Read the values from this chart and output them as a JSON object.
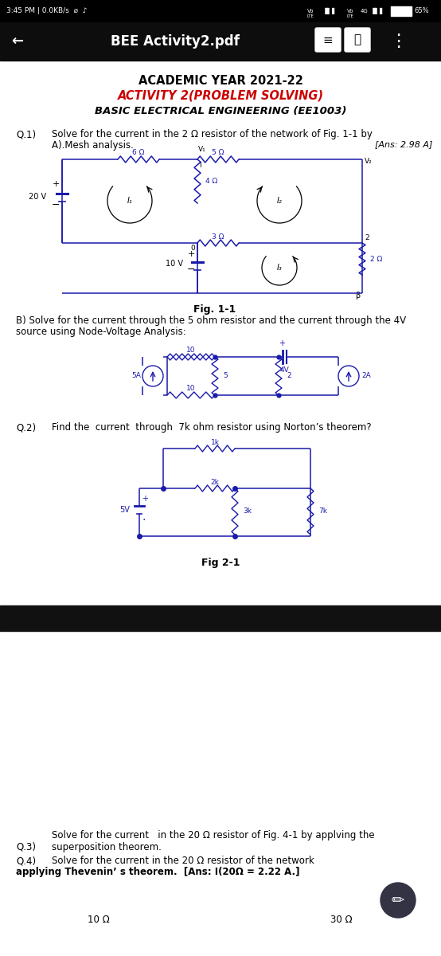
{
  "bg_color": "#000000",
  "content_bg": "#ffffff",
  "circuit_color": "#1a1aaa",
  "black": "#000000",
  "white": "#ffffff",
  "red": "#cc0000",
  "gray_bar": "#1a1a1a",
  "status_text": "3:45 PM | 0.0KB/s",
  "battery_pct": "65%",
  "title_bar_text": "BEE Activity2.pdf",
  "heading1": "ACADEMIC YEAR 2021-22",
  "heading2": "ACTIVITY 2(PROBLEM SOLVING)",
  "heading3": "BASIC ELECTRICAL ENGINEERING (EE1003)",
  "q1_line1": "Solve for the current in the 2 Ω resistor of the network of Fig. 1-1 by",
  "q1_line2": "A).Mesh analysis.",
  "ans1": "[Ans: 2.98 A]",
  "fig1_label": "Fig. 1-1",
  "q1b_line1": "B) Solve for the current through the 5 ohm resistor and the current through the 4V",
  "q1b_line2": "source using Node-Voltage Analysis:",
  "q2_text": "Find the  current  through  7k ohm resistor using Norton’s theorem?",
  "fig2_label": "Fig 2-1",
  "q3_line1": "Solve for the current   in the 20 Ω resistor of Fig. 4-1 by applving the",
  "q3_line2": "superposition theorem.",
  "q4_line1": "Solve for the current in the 20 Ω resistor of the network",
  "q4_line2": "applying Thevenin’ s theorem.  [Ans: I(20Ω = 2.22 A.]",
  "bottom_nums": "10 Ω                                   30 Ω"
}
